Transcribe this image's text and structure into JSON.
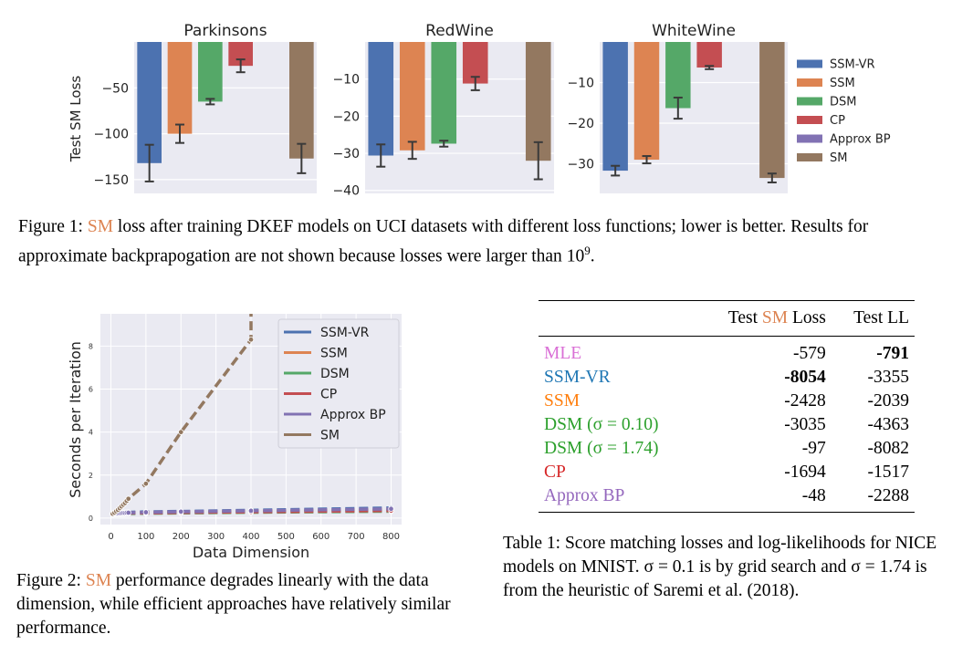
{
  "figure1": {
    "ylabel": "Test SM Loss",
    "legend": [
      {
        "label": "SSM-VR",
        "color": "#4c72b0"
      },
      {
        "label": "SSM",
        "color": "#dd8452"
      },
      {
        "label": "DSM",
        "color": "#55a868"
      },
      {
        "label": "CP",
        "color": "#c44e52"
      },
      {
        "label": "Approx BP",
        "color": "#8172b3"
      },
      {
        "label": "SM",
        "color": "#937860"
      }
    ],
    "caption_prefix": "Figure 1: ",
    "caption_sm": "SM",
    "caption_rest": " loss after training DKEF models on UCI datasets with different loss functions; lower is better. Results for approximate backprapogation are not shown because losses were larger than ",
    "caption_exp_base": "10",
    "caption_exp_power": "9",
    "caption_end": "."
  },
  "chart_data": [
    {
      "type": "bar",
      "title": "Parkinsons",
      "ylabel": "Test SM Loss",
      "categories": [
        "SSM-VR",
        "SSM",
        "DSM",
        "CP",
        "Approx BP",
        "SM"
      ],
      "values": [
        -132,
        -100,
        -65,
        -26,
        null,
        -127
      ],
      "errors": [
        20,
        10,
        3,
        7,
        null,
        16
      ],
      "ylim": [
        -165,
        0
      ],
      "yticks": [
        -50,
        -100,
        -150
      ],
      "ytick_labels": [
        "−50",
        "−100",
        "−150"
      ]
    },
    {
      "type": "bar",
      "title": "RedWine",
      "categories": [
        "SSM-VR",
        "SSM",
        "DSM",
        "CP",
        "Approx BP",
        "SM"
      ],
      "values": [
        -30.6,
        -29.2,
        -27.4,
        -11.2,
        null,
        -32
      ],
      "errors": [
        3.0,
        2.3,
        0.8,
        1.8,
        null,
        5
      ],
      "ylim": [
        -40.8,
        0
      ],
      "yticks": [
        -10,
        -20,
        -30,
        -40
      ],
      "ytick_labels": [
        "−10",
        "−20",
        "−30",
        "−40"
      ]
    },
    {
      "type": "bar",
      "title": "WhiteWine",
      "categories": [
        "SSM-VR",
        "SSM",
        "DSM",
        "CP",
        "Approx BP",
        "SM"
      ],
      "values": [
        -31.7,
        -29.0,
        -16.3,
        -6.3,
        null,
        -33.5
      ],
      "errors": [
        1.2,
        0.9,
        2.6,
        0.4,
        null,
        1.1
      ],
      "ylim": [
        -37.3,
        0
      ],
      "yticks": [
        -10,
        -20,
        -30
      ],
      "ytick_labels": [
        "−10",
        "−20",
        "−30"
      ]
    },
    {
      "type": "line",
      "xlabel": "Data Dimension",
      "ylabel": "Seconds per Iteration",
      "xlim": [
        -30,
        830
      ],
      "ylim": [
        -0.3,
        9.5
      ],
      "xticks": [
        0,
        100,
        200,
        300,
        400,
        500,
        600,
        700,
        800
      ],
      "yticks": [
        0,
        2,
        4,
        6,
        8
      ],
      "legend_position": "top-right",
      "series": [
        {
          "name": "SSM-VR",
          "color": "#4c72b0",
          "x": [
            5,
            10,
            15,
            20,
            25,
            30,
            35,
            40,
            45,
            50,
            100,
            200,
            400,
            800
          ],
          "y": [
            0.22,
            0.23,
            0.23,
            0.24,
            0.24,
            0.25,
            0.25,
            0.26,
            0.26,
            0.27,
            0.29,
            0.31,
            0.36,
            0.47
          ]
        },
        {
          "name": "SSM",
          "color": "#dd8452",
          "x": [
            5,
            10,
            15,
            20,
            25,
            30,
            35,
            40,
            45,
            50,
            100,
            200,
            400,
            800
          ],
          "y": [
            0.2,
            0.2,
            0.21,
            0.21,
            0.22,
            0.22,
            0.22,
            0.23,
            0.23,
            0.24,
            0.26,
            0.28,
            0.32,
            0.4
          ]
        },
        {
          "name": "DSM",
          "color": "#55a868",
          "x": [
            5,
            10,
            15,
            20,
            25,
            30,
            35,
            40,
            45,
            50,
            100,
            200,
            400,
            800
          ],
          "y": [
            0.18,
            0.18,
            0.19,
            0.19,
            0.19,
            0.2,
            0.2,
            0.2,
            0.21,
            0.21,
            0.22,
            0.24,
            0.27,
            0.32
          ]
        },
        {
          "name": "CP",
          "color": "#c44e52",
          "x": [
            5,
            10,
            15,
            20,
            25,
            30,
            35,
            40,
            45,
            50,
            100,
            200,
            400,
            800
          ],
          "y": [
            0.19,
            0.19,
            0.2,
            0.2,
            0.2,
            0.21,
            0.21,
            0.22,
            0.22,
            0.23,
            0.24,
            0.26,
            0.29,
            0.35
          ]
        },
        {
          "name": "Approx BP",
          "color": "#8172b3",
          "x": [
            5,
            10,
            15,
            20,
            25,
            30,
            35,
            40,
            45,
            50,
            100,
            200,
            400,
            800
          ],
          "y": [
            0.21,
            0.21,
            0.22,
            0.22,
            0.23,
            0.23,
            0.24,
            0.24,
            0.25,
            0.25,
            0.27,
            0.3,
            0.34,
            0.43
          ]
        },
        {
          "name": "SM",
          "color": "#937860",
          "x": [
            5,
            10,
            15,
            20,
            25,
            30,
            35,
            40,
            45,
            50,
            100,
            200,
            400,
            400
          ],
          "y": [
            0.2,
            0.25,
            0.32,
            0.38,
            0.46,
            0.54,
            0.62,
            0.7,
            0.8,
            0.9,
            1.6,
            4.0,
            8.3,
            9.5
          ]
        }
      ]
    }
  ],
  "figure2": {
    "caption_prefix": "Figure 2: ",
    "caption_sm": "SM",
    "caption_rest": " performance degrades linearly with the data dimension, while efficient approaches have relatively similar performance."
  },
  "table1": {
    "headers": [
      "",
      "Test SM Loss",
      "Test LL"
    ],
    "header_sm_loss_prefix": "Test ",
    "header_sm_loss_sm": "SM",
    "header_sm_loss_suffix": " Loss",
    "rows": [
      {
        "method": "MLE",
        "color": "#da70d6",
        "sm_loss": "-579",
        "ll": "-791",
        "bold_sm": false,
        "bold_ll": true
      },
      {
        "method": "SSM-VR",
        "color": "#1f77b4",
        "sm_loss": "-8054",
        "ll": "-3355",
        "bold_sm": true,
        "bold_ll": false
      },
      {
        "method": "SSM",
        "color": "#ff7f0e",
        "sm_loss": "-2428",
        "ll": "-2039",
        "bold_sm": false,
        "bold_ll": false
      },
      {
        "method": "DSM (σ = 0.10)",
        "color": "#2ca02c",
        "sm_loss": "-3035",
        "ll": "-4363",
        "bold_sm": false,
        "bold_ll": false
      },
      {
        "method": "DSM (σ = 1.74)",
        "color": "#2ca02c",
        "sm_loss": "-97",
        "ll": "-8082",
        "bold_sm": false,
        "bold_ll": false
      },
      {
        "method": "CP",
        "color": "#d62728",
        "sm_loss": "-1694",
        "ll": "-1517",
        "bold_sm": false,
        "bold_ll": false
      },
      {
        "method": "Approx BP",
        "color": "#9467bd",
        "sm_loss": "-48",
        "ll": "-2288",
        "bold_sm": false,
        "bold_ll": false
      }
    ],
    "caption": "Table 1: Score matching losses and log-likelihoods for NICE models on MNIST. σ = 0.1 is by grid search and σ = 1.74 is from the heuristic of Saremi et al. (2018)."
  }
}
